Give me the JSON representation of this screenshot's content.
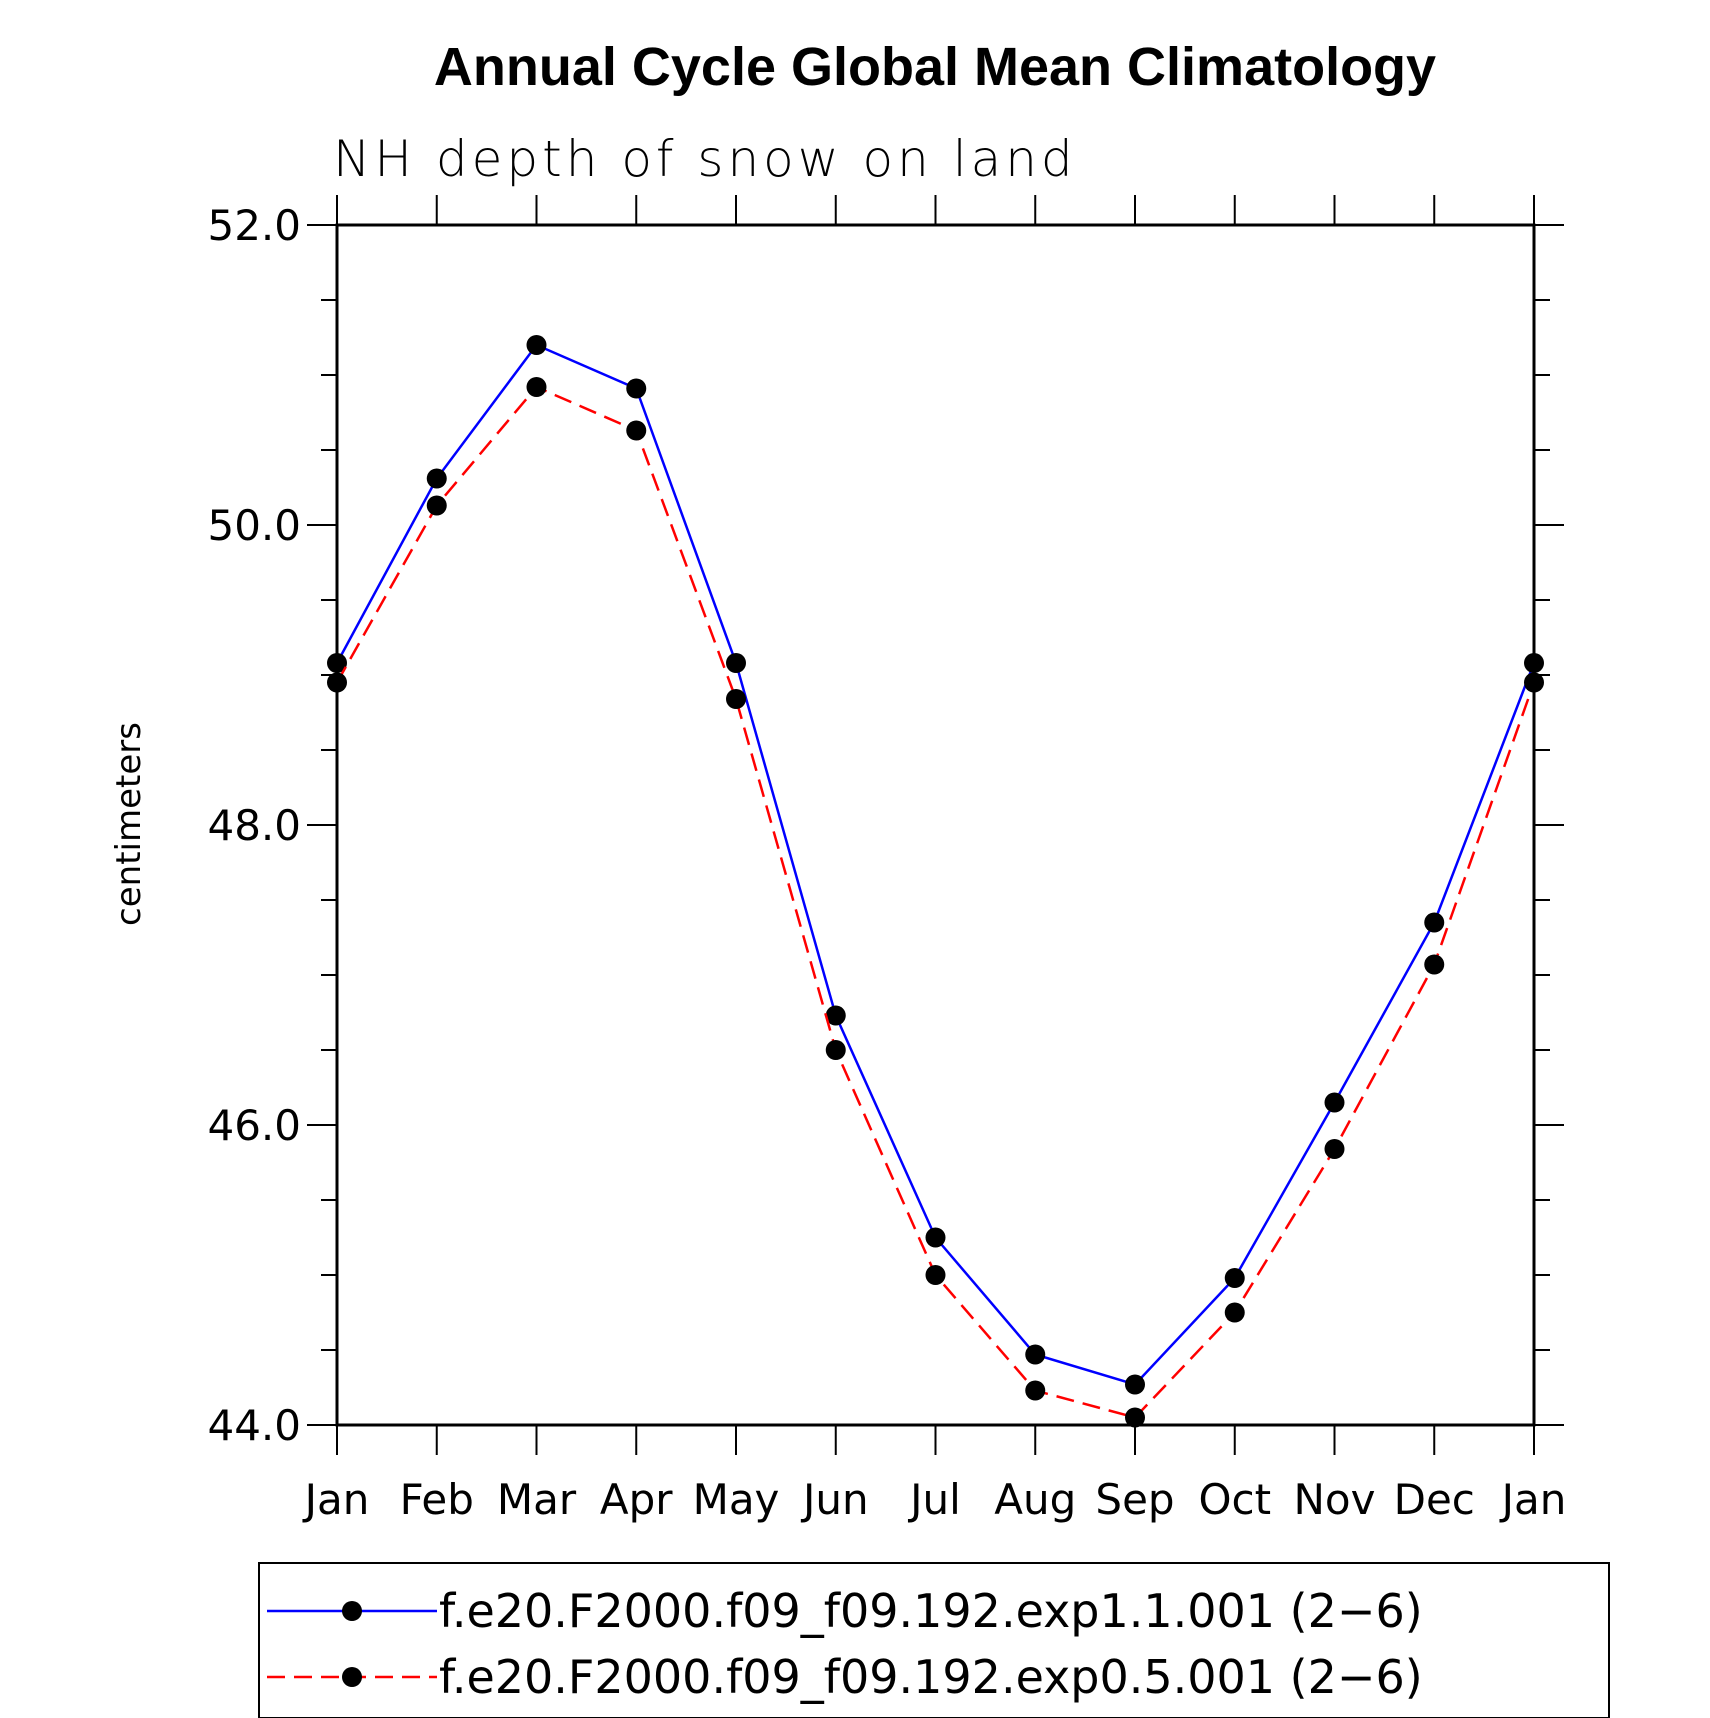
{
  "chart_data": {
    "type": "line",
    "title": "Annual Cycle Global Mean Climatology",
    "subtitle": "NH depth of snow on land",
    "xlabel": "",
    "ylabel": "centimeters",
    "categories": [
      "Jan",
      "Feb",
      "Mar",
      "Apr",
      "May",
      "Jun",
      "Jul",
      "Aug",
      "Sep",
      "Oct",
      "Nov",
      "Dec",
      "Jan"
    ],
    "ylim": [
      44.0,
      52.0
    ],
    "y_ticks": [
      "44.0",
      "46.0",
      "48.0",
      "50.0",
      "52.0"
    ],
    "series": [
      {
        "name": "f.e20.F2000.f09_f09.192.exp1.1.001 (2−6)",
        "color": "#0000ff",
        "dash": "solid",
        "values": [
          49.08,
          50.31,
          51.2,
          50.91,
          49.08,
          46.73,
          45.25,
          44.47,
          44.27,
          44.98,
          46.15,
          47.35,
          49.08
        ]
      },
      {
        "name": "f.e20.F2000.f09_f09.192.exp0.5.001 (2−6)",
        "color": "#ff0000",
        "dash": "dashed",
        "values": [
          48.95,
          50.13,
          50.92,
          50.63,
          48.84,
          46.5,
          45.0,
          44.23,
          44.05,
          44.75,
          45.84,
          47.07,
          48.95
        ]
      }
    ],
    "legend_position": "bottom"
  }
}
